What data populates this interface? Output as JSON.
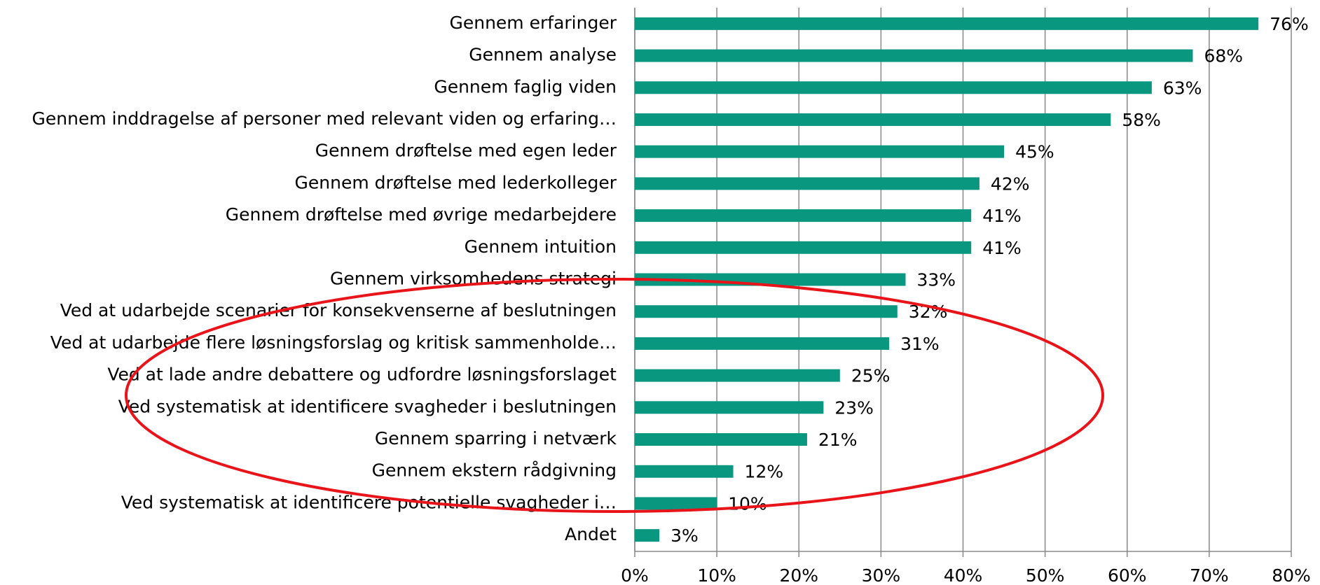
{
  "chart_data": {
    "type": "hbar",
    "color": "#0a9780",
    "grid": true,
    "categories": [
      "Gennem erfaringer",
      "Gennem analyse",
      "Gennem faglig viden",
      "Gennem inddragelse af personer med relevant viden og erfaring…",
      "Gennem drøftelse med egen leder",
      "Gennem drøftelse med lederkolleger",
      "Gennem drøftelse med øvrige medarbejdere",
      "Gennem intuition",
      "Gennem virksomhedens strategi",
      "Ved at udarbejde scenarier for konsekvenserne af beslutningen",
      "Ved at udarbejde flere løsningsforslag og kritisk sammenholde…",
      "Ved at lade andre debattere og udfordre løsningsforslaget",
      "Ved systematisk at identificere svagheder i beslutningen",
      "Gennem sparring i netværk",
      "Gennem ekstern rådgivning",
      "Ved systematisk at identificere potentielle svagheder i…",
      "Andet"
    ],
    "values": [
      76,
      68,
      63,
      58,
      45,
      42,
      41,
      41,
      33,
      32,
      31,
      25,
      23,
      21,
      12,
      10,
      3
    ],
    "value_labels": [
      "76%",
      "68%",
      "63%",
      "58%",
      "45%",
      "42%",
      "41%",
      "41%",
      "33%",
      "32%",
      "31%",
      "25%",
      "23%",
      "21%",
      "12%",
      "10%",
      "3%"
    ],
    "xlim": [
      0,
      80
    ],
    "xticks": [
      {
        "value": 0,
        "label": "0%"
      },
      {
        "value": 10,
        "label": "10%"
      },
      {
        "value": 20,
        "label": "20%"
      },
      {
        "value": 30,
        "label": "30%"
      },
      {
        "value": 40,
        "label": "40%"
      },
      {
        "value": 50,
        "label": "50%"
      },
      {
        "value": 60,
        "label": "60%"
      },
      {
        "value": 70,
        "label": "70%"
      },
      {
        "value": 80,
        "label": "80%"
      }
    ]
  }
}
